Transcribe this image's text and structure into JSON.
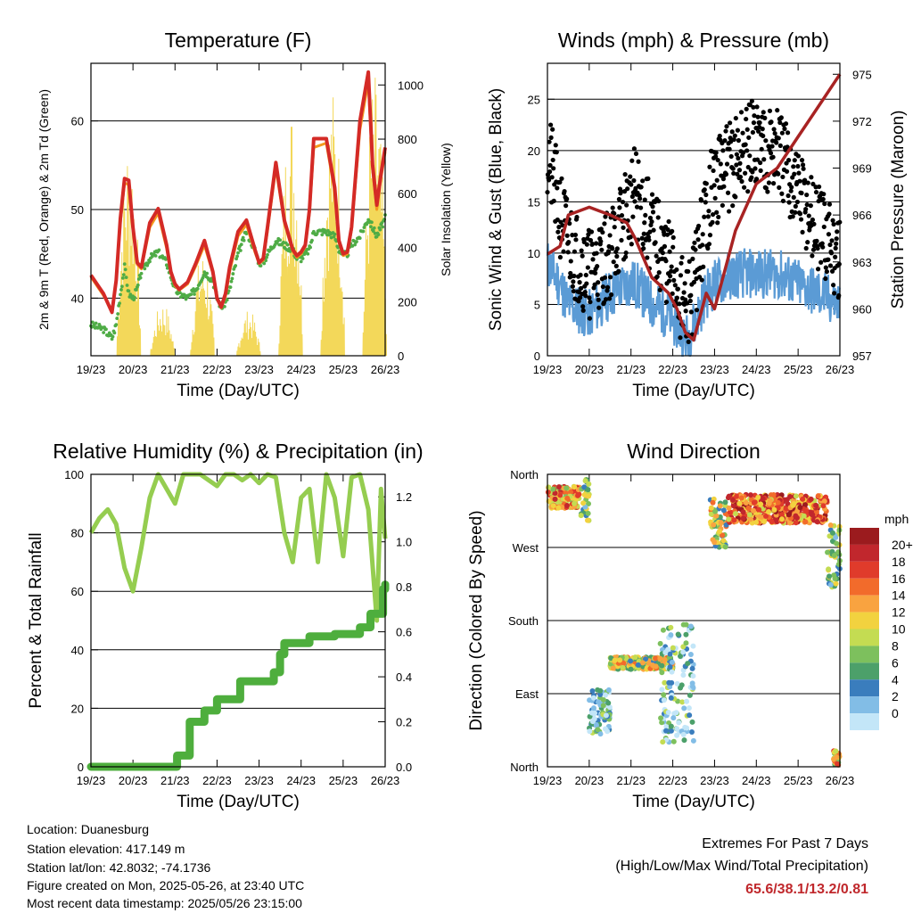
{
  "colors": {
    "temp_2m": "#d42a26",
    "temp_9m": "#f39a1e",
    "dewpoint": "#4fac46",
    "solar": "#f3d85a",
    "wind": "#5b9bd5",
    "gust": "#000000",
    "pressure": "#a82323",
    "rh": "#95cd50",
    "precip": "#4eae3d",
    "extremes": "#c0282c"
  },
  "chart_data": [
    {
      "type": "line",
      "title": "Temperature (F)",
      "xlabel": "Time (Day/UTC)",
      "ylabel": "2m & 9m T (Red, Orange) & 2m Td (Green)",
      "y2label": "Solar Insolation (Yellow)",
      "x_ticks": [
        "19/23",
        "20/23",
        "21/23",
        "22/23",
        "23/23",
        "24/23",
        "25/23",
        "26/23"
      ],
      "ylim": [
        33.5,
        66.5
      ],
      "y_ticks": [
        40,
        50,
        60
      ],
      "y2lim": [
        0,
        1080
      ],
      "y2_ticks": [
        0,
        200,
        400,
        600,
        800,
        1000
      ],
      "grid": true,
      "x": [
        0,
        0.3,
        0.5,
        0.6,
        0.7,
        0.8,
        0.9,
        1.0,
        1.1,
        1.2,
        1.4,
        1.6,
        1.8,
        1.9,
        2.0,
        2.1,
        2.3,
        2.5,
        2.7,
        2.9,
        3.0,
        3.1,
        3.2,
        3.3,
        3.5,
        3.7,
        3.9,
        4.0,
        4.1,
        4.2,
        4.4,
        4.6,
        4.8,
        4.9,
        5.0,
        5.1,
        5.2,
        5.3,
        5.6,
        5.8,
        5.9,
        6.0,
        6.1,
        6.2,
        6.4,
        6.6,
        6.7,
        6.8,
        6.9,
        7.0
      ],
      "series": [
        {
          "name": "2m T",
          "values": [
            42.6,
            40.5,
            38.4,
            42,
            49,
            53.5,
            53.3,
            48,
            44,
            43.5,
            48.5,
            50.1,
            46,
            43,
            41.6,
            41,
            41.8,
            44,
            46.5,
            43,
            40,
            39,
            40.5,
            43.5,
            47.5,
            48.8,
            45.5,
            44,
            44.5,
            48,
            55.3,
            48.8,
            45.5,
            44.8,
            45.2,
            46,
            50,
            58,
            58,
            52.5,
            46.5,
            45,
            45.2,
            48,
            60,
            65.5,
            55,
            50.5,
            54,
            57
          ]
        },
        {
          "name": "9m T",
          "values": [
            42.4,
            40.3,
            38.6,
            41.8,
            48.5,
            53,
            52.8,
            47.8,
            43.8,
            43.3,
            48,
            49.6,
            45.6,
            42.8,
            41.4,
            40.9,
            41.6,
            43.7,
            46,
            42.8,
            39.9,
            38.9,
            40.2,
            43,
            47,
            48.3,
            45.2,
            43.9,
            44.3,
            47.6,
            54.7,
            48.5,
            45.3,
            44.6,
            45,
            45.8,
            49.6,
            57,
            57.5,
            52,
            46.3,
            44.8,
            45,
            47.7,
            59,
            64.5,
            54.5,
            50,
            53.5,
            56.5
          ]
        },
        {
          "name": "2m Td",
          "values": [
            37,
            36.5,
            35.5,
            37,
            40.5,
            43.5,
            40.5,
            40,
            41,
            43,
            44.5,
            45.2,
            44,
            42.5,
            41,
            40.5,
            40,
            41,
            43,
            42,
            40,
            39,
            39.5,
            41,
            45,
            47.5,
            45.5,
            44,
            44,
            45,
            46.5,
            46,
            45.5,
            44.5,
            44.5,
            45,
            45.5,
            47.5,
            47.5,
            47,
            45.5,
            44.8,
            45,
            46,
            47,
            49,
            48,
            47,
            48,
            49
          ]
        },
        {
          "name": "Solar Insolation",
          "axis": "y2",
          "peaks": [
            {
              "x": 0.9,
              "value": 830
            },
            {
              "x": 1.7,
              "value": 200
            },
            {
              "x": 2.65,
              "value": 390
            },
            {
              "x": 3.75,
              "value": 170
            },
            {
              "x": 4.75,
              "value": 950
            },
            {
              "x": 5.75,
              "value": 1000
            },
            {
              "x": 6.75,
              "value": 1050
            }
          ]
        }
      ]
    },
    {
      "type": "scatter",
      "title": "Winds (mph) & Pressure (mb)",
      "xlabel": "Time (Day/UTC)",
      "ylabel": "Sonic Wind & Gust (Blue, Black)",
      "y2label": "Station Pressure (Maroon)",
      "x_ticks": [
        "19/23",
        "20/23",
        "21/23",
        "22/23",
        "23/23",
        "24/23",
        "25/23",
        "26/23"
      ],
      "ylim": [
        0,
        28.5
      ],
      "y_ticks": [
        0,
        5,
        10,
        15,
        20,
        25
      ],
      "y2lim": [
        957,
        975.7
      ],
      "y2_ticks": [
        957,
        960,
        963,
        966,
        969,
        972,
        975
      ],
      "grid": true,
      "x": [
        0,
        0.3,
        0.5,
        1.0,
        1.5,
        1.9,
        2.1,
        2.5,
        2.9,
        3.1,
        3.3,
        3.5,
        3.8,
        4.0,
        4.5,
        5.0,
        5.5,
        6.0,
        6.5,
        7.0
      ],
      "series": [
        {
          "name": "Sonic Wind",
          "values": [
            9,
            7,
            5,
            4,
            6,
            7,
            7,
            5,
            4,
            3,
            1.5,
            3,
            6,
            7,
            8,
            8,
            8,
            7,
            6,
            5
          ]
        },
        {
          "name": "Gust",
          "values": [
            20,
            14,
            11,
            8,
            10,
            14,
            16,
            12,
            9,
            7,
            4,
            7,
            14,
            17,
            19,
            21,
            20,
            16,
            12,
            10
          ]
        },
        {
          "name": "Station Pressure",
          "axis": "y2",
          "values": [
            963.5,
            964,
            966,
            966.5,
            966,
            965.5,
            964.5,
            962,
            961,
            960,
            958.5,
            958,
            961,
            960,
            965,
            968,
            969,
            971,
            973,
            975
          ]
        }
      ]
    },
    {
      "type": "line",
      "title": "Relative Humidity (%) & Precipitation (in)",
      "xlabel": "Time (Day/UTC)",
      "ylabel": "Percent & Total Rainfall",
      "x_ticks": [
        "19/23",
        "20/23",
        "21/23",
        "22/23",
        "23/23",
        "24/23",
        "25/23",
        "26/23"
      ],
      "ylim": [
        0,
        100
      ],
      "y_ticks": [
        0,
        20,
        40,
        60,
        80,
        100
      ],
      "y2lim": [
        0,
        1.3
      ],
      "y2_ticks": [
        "0.0",
        "0.2",
        "0.4",
        "0.6",
        "0.8",
        "1.0",
        "1.2"
      ],
      "grid": true,
      "x": [
        0,
        0.2,
        0.4,
        0.6,
        0.8,
        1.0,
        1.2,
        1.4,
        1.6,
        1.8,
        2.0,
        2.2,
        2.4,
        2.6,
        2.8,
        3.0,
        3.2,
        3.4,
        3.6,
        3.8,
        4.0,
        4.2,
        4.4,
        4.6,
        4.8,
        5.0,
        5.2,
        5.4,
        5.6,
        5.8,
        6.0,
        6.2,
        6.4,
        6.6,
        6.8,
        6.9,
        7.0
      ],
      "series": [
        {
          "name": "Relative Humidity",
          "values": [
            80,
            85,
            88,
            83,
            68,
            60,
            75,
            92,
            100,
            95,
            90,
            100,
            100,
            100,
            98,
            96,
            100,
            100,
            98,
            100,
            97,
            100,
            99,
            80,
            70,
            92,
            95,
            70,
            100,
            92,
            72,
            99,
            100,
            88,
            50,
            95,
            78
          ]
        },
        {
          "name": "Total Rainfall",
          "axis": "y2",
          "steps": [
            {
              "x": 0,
              "value": 0
            },
            {
              "x": 2.05,
              "value": 0.05
            },
            {
              "x": 2.35,
              "value": 0.2
            },
            {
              "x": 2.7,
              "value": 0.25
            },
            {
              "x": 3.0,
              "value": 0.3
            },
            {
              "x": 3.55,
              "value": 0.38
            },
            {
              "x": 4.35,
              "value": 0.42
            },
            {
              "x": 4.5,
              "value": 0.5
            },
            {
              "x": 4.6,
              "value": 0.55
            },
            {
              "x": 5.2,
              "value": 0.58
            },
            {
              "x": 5.8,
              "value": 0.59
            },
            {
              "x": 6.4,
              "value": 0.62
            },
            {
              "x": 6.65,
              "value": 0.68
            },
            {
              "x": 6.95,
              "value": 0.79
            },
            {
              "x": 7.0,
              "value": 0.81
            }
          ]
        }
      ]
    },
    {
      "type": "scatter",
      "title": "Wind Direction",
      "xlabel": "Time (Day/UTC)",
      "ylabel": "Direction (Colored By Speed)",
      "x_ticks": [
        "19/23",
        "20/23",
        "21/23",
        "22/23",
        "23/23",
        "24/23",
        "25/23",
        "26/23"
      ],
      "y_ticks": [
        "North",
        "East",
        "South",
        "West",
        "North"
      ],
      "ylim": [
        0,
        360
      ],
      "grid": true,
      "clusters": [
        {
          "x": [
            0,
            0.8
          ],
          "direction": [
            318,
            345
          ],
          "speed": 7
        },
        {
          "x": [
            0.8,
            1.0
          ],
          "direction": [
            300,
            355
          ],
          "speed": 4
        },
        {
          "x": [
            1.0,
            1.5
          ],
          "direction": [
            40,
            95
          ],
          "speed": 2
        },
        {
          "x": [
            1.5,
            3.0
          ],
          "direction": [
            120,
            135
          ],
          "speed": 5
        },
        {
          "x": [
            2.7,
            3.5
          ],
          "direction": [
            30,
            175
          ],
          "speed": 2
        },
        {
          "x": [
            3.9,
            4.3
          ],
          "direction": [
            270,
            330
          ],
          "speed": 5
        },
        {
          "x": [
            4.3,
            6.7
          ],
          "direction": [
            300,
            335
          ],
          "speed": 8
        },
        {
          "x": [
            6.7,
            7.0
          ],
          "direction": [
            220,
            300
          ],
          "speed": 4
        },
        {
          "x": [
            6.85,
            7.0
          ],
          "direction": [
            2,
            20
          ],
          "speed": 6
        }
      ],
      "colorbar": {
        "unit": "mph",
        "labels": [
          "20+",
          "18",
          "16",
          "14",
          "12",
          "10",
          "8",
          "6",
          "4",
          "2",
          "0"
        ],
        "colors": [
          "#9b1b1e",
          "#c1272d",
          "#e03b2b",
          "#f26b2b",
          "#f9a340",
          "#f2d23f",
          "#c4dc52",
          "#7dc05d",
          "#4ca06a",
          "#3a7dbd",
          "#82bde6",
          "#c3e6f8"
        ]
      }
    }
  ],
  "footer": {
    "location": "Location: Duanesburg",
    "elevation": "Station elevation: 417.149 m",
    "latlon": "Station lat/lon: 42.8032; -74.1736",
    "created": "Figure created on Mon, 2025-05-26, at 23:40 UTC",
    "timestamp": "Most recent data timestamp: 2025/05/26 23:15:00"
  },
  "extremes": {
    "title": "Extremes For Past 7 Days",
    "subtitle": "(High/Low/Max Wind/Total Precipitation)",
    "values": "65.6/38.1/13.2/0.81"
  }
}
